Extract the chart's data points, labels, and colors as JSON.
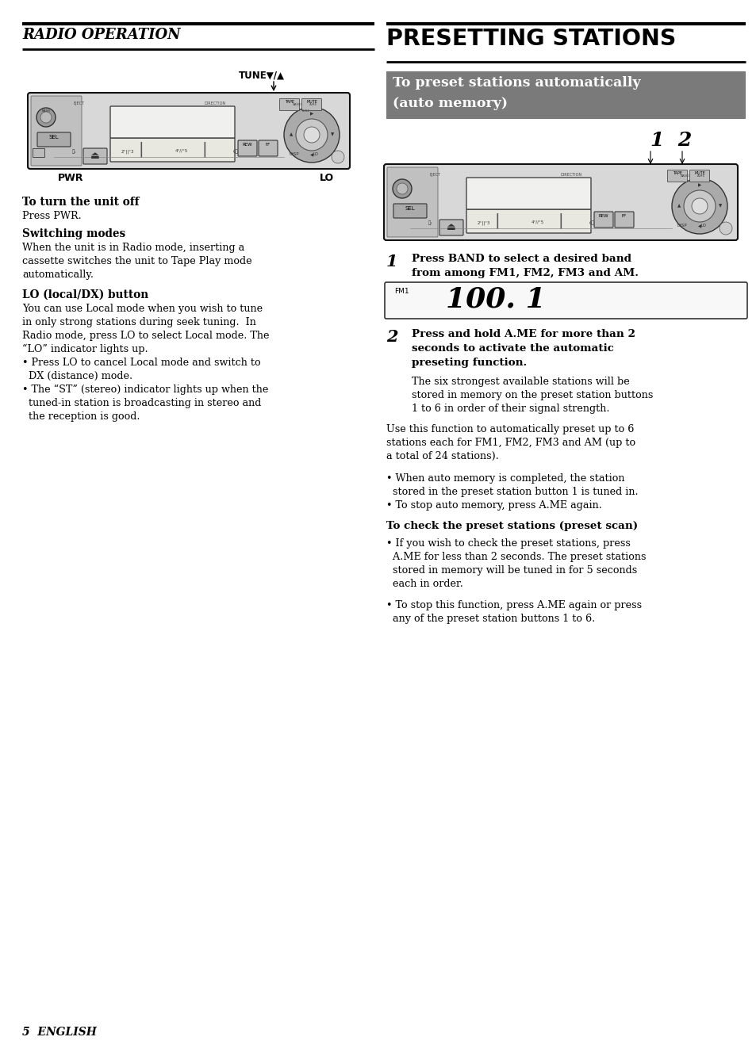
{
  "page_bg": "#ffffff",
  "left_header": "RADIO OPERATION",
  "right_header": "PRESETTING STATIONS",
  "subheader_line1": "To preset stations automatically",
  "subheader_line2": "(auto memory)",
  "subheader_bg": "#7a7a7a",
  "step1_text_line1": "Press BAND to select a desired band",
  "step1_text_line2": "from among FM1, FM2, FM3 and AM.",
  "step1_display": "100. 1",
  "step1_display_label": "FM1",
  "step2_bold_line1": "Press and hold A.ME for more than 2",
  "step2_bold_line2": "seconds to activate the automatic",
  "step2_bold_line3": "preseting function.",
  "step2_normal_line1": "The six strongest available stations will be",
  "step2_normal_line2": "stored in memory on the preset station buttons",
  "step2_normal_line3": "1 to 6 in order of their signal strength.",
  "para1_line1": "Use this function to automatically preset up to 6",
  "para1_line2": "stations each for FM1, FM2, FM3 and AM (up to",
  "para1_line3": "a total of 24 stations).",
  "bullet_r1_line1": "• When auto memory is completed, the station",
  "bullet_r1_line2": "  stored in the preset station button 1 is tuned in.",
  "bullet_r2": "• To stop auto memory, press A.ME again.",
  "subsection_bold": "To check the preset stations (preset scan)",
  "scan_b1_line1": "• If you wish to check the preset stations, press",
  "scan_b1_line2": "  A.ME for less than 2 seconds. The preset stations",
  "scan_b1_line3": "  stored in memory will be tuned in for 5 seconds",
  "scan_b1_line4": "  each in order.",
  "scan_b2_line1": "• To stop this function, press A.ME again or press",
  "scan_b2_line2": "  any of the preset station buttons 1 to 6.",
  "left_sec1_heading": "To turn the unit off",
  "left_sec1_body1": "Press PWR.",
  "left_sec2_heading": "Switching modes",
  "left_sec2_body1": "When the unit is in Radio mode, inserting a",
  "left_sec2_body2": "cassette switches the unit to Tape Play mode",
  "left_sec2_body3": "automatically.",
  "left_sec3_heading": "LO (local/DX) button",
  "left_sec3_body1": "You can use Local mode when you wish to tune",
  "left_sec3_body2": "in only strong stations during seek tuning.  In",
  "left_sec3_body3": "Radio mode, press LO to select Local mode. The",
  "left_sec3_body4": "“LO” indicator lights up.",
  "left_sec3_bullet1a": "• Press LO to cancel Local mode and switch to",
  "left_sec3_bullet1b": "  DX (distance) mode.",
  "left_sec3_bullet2a": "• The “ST” (stereo) indicator lights up when the",
  "left_sec3_bullet2b": "  tuned-in station is broadcasting in stereo and",
  "left_sec3_bullet2c": "  the reception is good.",
  "tune_label": "TUNE▼/▲",
  "pwr_label": "PWR",
  "lo_label": "LO",
  "page_number": "5",
  "page_lang": "ENGLISH",
  "text_color": "#000000",
  "body_fontsize": 9.2,
  "heading_fontsize": 9.8
}
